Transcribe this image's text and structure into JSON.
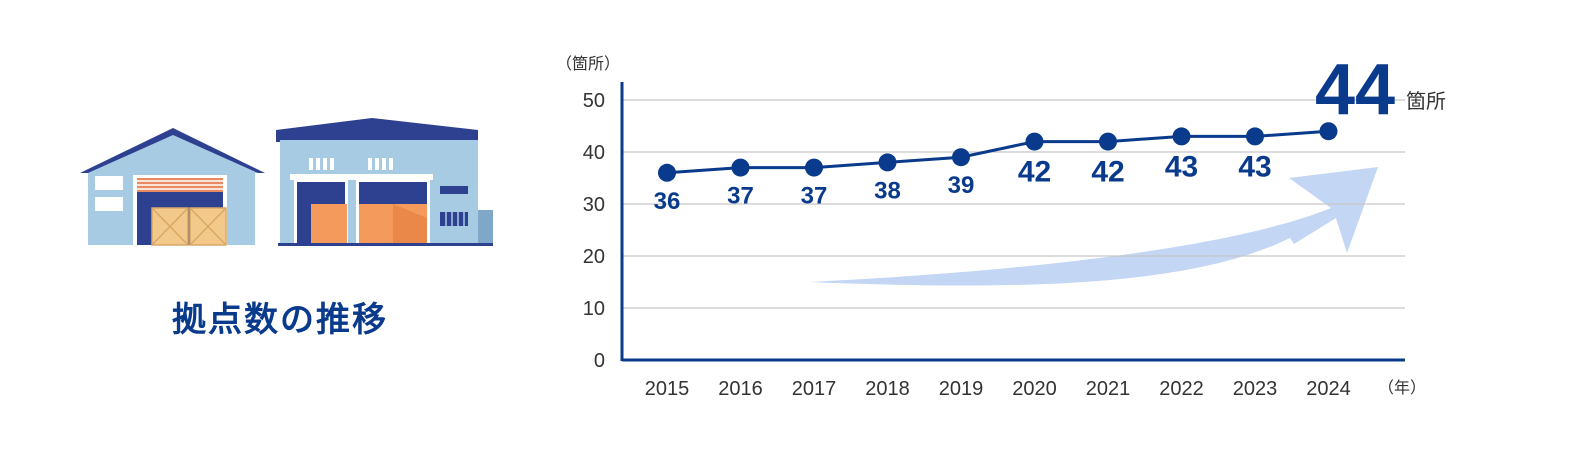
{
  "section_title": "拠点数の推移",
  "colors": {
    "navy": "#0a3a8c",
    "grid": "#c8c8c8",
    "arrow": "#c3d6f4",
    "axis_text": "#333333"
  },
  "illustration": {
    "icon": "warehouse-icon"
  },
  "chart_data": {
    "type": "line",
    "x": [
      "2015",
      "2016",
      "2017",
      "2018",
      "2019",
      "2020",
      "2021",
      "2022",
      "2023",
      "2024"
    ],
    "series": [
      {
        "values": [
          36,
          37,
          37,
          38,
          39,
          42,
          42,
          43,
          43,
          44
        ],
        "labels": [
          "36",
          "37",
          "37",
          "38",
          "39",
          "42",
          "42",
          "43",
          "43",
          ""
        ]
      }
    ],
    "ylim": [
      0,
      50
    ],
    "yticks": [
      0,
      10,
      20,
      30,
      40,
      50
    ],
    "ylabel": "（箇所）",
    "xlabel": "（年）",
    "highlight": {
      "value": "44",
      "unit": "箇所"
    },
    "grid": true,
    "annotation": "upward-trend-arrow"
  }
}
